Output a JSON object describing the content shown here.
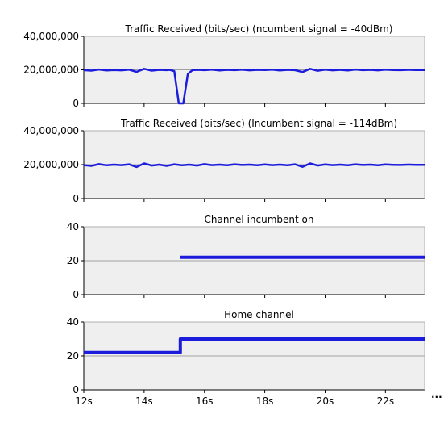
{
  "more_label": "...",
  "colors": {
    "series": "#1c1cdc",
    "plot_bg": "#efefef",
    "gridline": "#a0a0a0",
    "axis": "#000000"
  },
  "x_axis": {
    "range": [
      12,
      23.3
    ],
    "ticks": [
      12,
      14,
      16,
      18,
      20,
      22
    ],
    "tick_labels": [
      "12s",
      "14s",
      "16s",
      "18s",
      "20s",
      "22s"
    ]
  },
  "chart_data": [
    {
      "type": "line",
      "title": "Traffic Received (bits/sec) (ncumbent signal = -40dBm)",
      "ylim": [
        0,
        40000000
      ],
      "y_ticks": [
        0,
        20000000,
        40000000
      ],
      "y_tick_labels": [
        "0",
        "20,000,000",
        "40,000,000"
      ],
      "grid": "horizontal-midline",
      "series": [
        {
          "x": [
            12,
            12.25,
            12.5,
            12.75,
            13,
            13.25,
            13.5,
            13.75,
            14,
            14.25,
            14.5,
            14.75,
            14.85,
            15.0,
            15.15,
            15.3,
            15.45,
            15.6,
            15.8,
            16,
            16.25,
            16.5,
            16.75,
            17,
            17.25,
            17.5,
            17.75,
            18,
            18.25,
            18.5,
            18.75,
            19,
            19.25,
            19.5,
            19.75,
            20,
            20.25,
            20.5,
            20.75,
            21,
            21.25,
            21.5,
            21.75,
            22,
            22.25,
            22.5,
            22.75,
            23,
            23.3
          ],
          "values": [
            19800000,
            19500000,
            20200000,
            19600000,
            19900000,
            19700000,
            20100000,
            18800000,
            20600000,
            19500000,
            20000000,
            19800000,
            20000000,
            19200000,
            0,
            0,
            17500000,
            19800000,
            20000000,
            19800000,
            20100000,
            19600000,
            20000000,
            19800000,
            20100000,
            19700000,
            20000000,
            19900000,
            20100000,
            19600000,
            20000000,
            19800000,
            18700000,
            20600000,
            19400000,
            20100000,
            19700000,
            20000000,
            19600000,
            20200000,
            19800000,
            20000000,
            19700000,
            20100000,
            19900000,
            19800000,
            20000000,
            19900000,
            19900000
          ]
        }
      ]
    },
    {
      "type": "line",
      "title": "Traffic Received (bits/sec) (Incumbent signal = -114dBm)",
      "ylim": [
        0,
        40000000
      ],
      "y_ticks": [
        0,
        20000000,
        40000000
      ],
      "y_tick_labels": [
        "0",
        "20,000,000",
        "40,000,000"
      ],
      "grid": "horizontal-midline",
      "series": [
        {
          "x": [
            12,
            12.25,
            12.5,
            12.75,
            13,
            13.25,
            13.5,
            13.75,
            14,
            14.25,
            14.5,
            14.75,
            15,
            15.25,
            15.5,
            15.75,
            16,
            16.25,
            16.5,
            16.75,
            17,
            17.25,
            17.5,
            17.75,
            18,
            18.25,
            18.5,
            18.75,
            19,
            19.25,
            19.5,
            19.75,
            20,
            20.25,
            20.5,
            20.75,
            21,
            21.25,
            21.5,
            21.75,
            22,
            22.25,
            22.5,
            22.75,
            23,
            23.3
          ],
          "values": [
            19700000,
            19300000,
            20300000,
            19600000,
            20000000,
            19700000,
            20200000,
            18600000,
            20700000,
            19500000,
            20000000,
            19300000,
            20200000,
            19600000,
            20000000,
            19500000,
            20300000,
            19700000,
            20000000,
            19600000,
            20200000,
            19800000,
            20000000,
            19600000,
            20100000,
            19700000,
            20000000,
            19600000,
            20200000,
            18700000,
            20700000,
            19500000,
            20100000,
            19700000,
            20000000,
            19600000,
            20200000,
            19800000,
            20000000,
            19600000,
            20100000,
            19900000,
            19800000,
            20000000,
            19900000,
            19900000
          ]
        }
      ]
    },
    {
      "type": "line",
      "title": "Channel incumbent on",
      "ylim": [
        0,
        40
      ],
      "y_ticks": [
        0,
        20,
        40
      ],
      "y_tick_labels": [
        "0",
        "20",
        "40"
      ],
      "grid": "horizontal-midline",
      "series": [
        {
          "x": [
            15.2,
            23.3
          ],
          "values": [
            22,
            22
          ]
        }
      ]
    },
    {
      "type": "line",
      "title": "Home channel",
      "ylim": [
        0,
        40
      ],
      "y_ticks": [
        0,
        20,
        40
      ],
      "y_tick_labels": [
        "0",
        "20",
        "40"
      ],
      "grid": "horizontal-midline",
      "series": [
        {
          "x": [
            12,
            15.2,
            15.2,
            23.3
          ],
          "values": [
            22,
            22,
            30,
            30
          ]
        }
      ]
    }
  ]
}
